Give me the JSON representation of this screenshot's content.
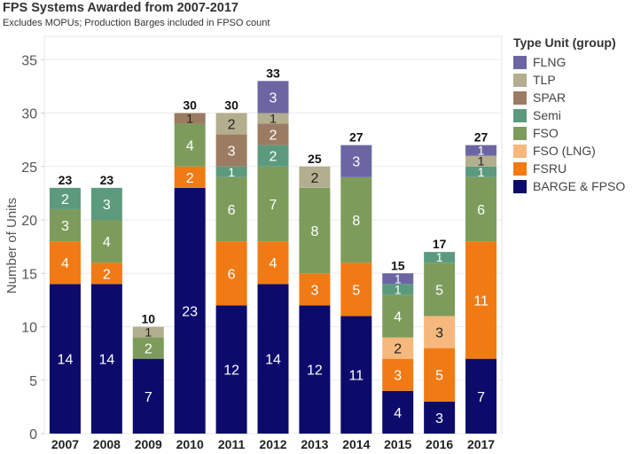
{
  "chart_data": {
    "type": "stacked-bar",
    "title": "FPS Systems Awarded from 2007-2017",
    "subtitle": "Excludes MOPUs; Production Barges included in FPSO count",
    "xlabel": "",
    "ylabel": "Number of Units",
    "ylim": [
      0,
      37
    ],
    "yticks": [
      0,
      5,
      10,
      15,
      20,
      25,
      30,
      35
    ],
    "grid": true,
    "legend_title": "Type Unit (group)",
    "legend_position": "right",
    "categories": [
      "2007",
      "2008",
      "2009",
      "2010",
      "2011",
      "2012",
      "2013",
      "2014",
      "2015",
      "2016",
      "2017"
    ],
    "totals": [
      23,
      23,
      10,
      30,
      30,
      33,
      25,
      27,
      15,
      17,
      27
    ],
    "series": [
      {
        "name": "BARGE & FPSO",
        "color": "#0c0a6b",
        "values": [
          14,
          14,
          7,
          23,
          12,
          14,
          12,
          11,
          4,
          3,
          7
        ]
      },
      {
        "name": "FSRU",
        "color": "#f07b14",
        "values": [
          4,
          2,
          0,
          2,
          6,
          4,
          3,
          5,
          3,
          5,
          11
        ]
      },
      {
        "name": "FSO (LNG)",
        "color": "#f6b87c",
        "values": [
          0,
          0,
          0,
          0,
          0,
          0,
          0,
          0,
          2,
          3,
          0
        ]
      },
      {
        "name": "FSO",
        "color": "#7d9c5c",
        "values": [
          3,
          4,
          2,
          4,
          6,
          7,
          8,
          8,
          4,
          5,
          6
        ]
      },
      {
        "name": "Semi",
        "color": "#5c9a7e",
        "values": [
          2,
          3,
          0,
          0,
          1,
          2,
          0,
          0,
          1,
          1,
          1
        ]
      },
      {
        "name": "SPAR",
        "color": "#9b7c62",
        "values": [
          0,
          0,
          0,
          1,
          3,
          2,
          0,
          0,
          0,
          0,
          0
        ]
      },
      {
        "name": "TLP",
        "color": "#b2ae8e",
        "values": [
          0,
          0,
          1,
          0,
          2,
          1,
          2,
          0,
          0,
          0,
          1
        ]
      },
      {
        "name": "FLNG",
        "color": "#6b66a3",
        "values": [
          0,
          0,
          0,
          0,
          0,
          3,
          0,
          3,
          1,
          0,
          1
        ]
      }
    ],
    "legend_order": [
      "FLNG",
      "TLP",
      "SPAR",
      "Semi",
      "FSO",
      "FSO (LNG)",
      "FSRU",
      "BARGE & FPSO"
    ]
  }
}
